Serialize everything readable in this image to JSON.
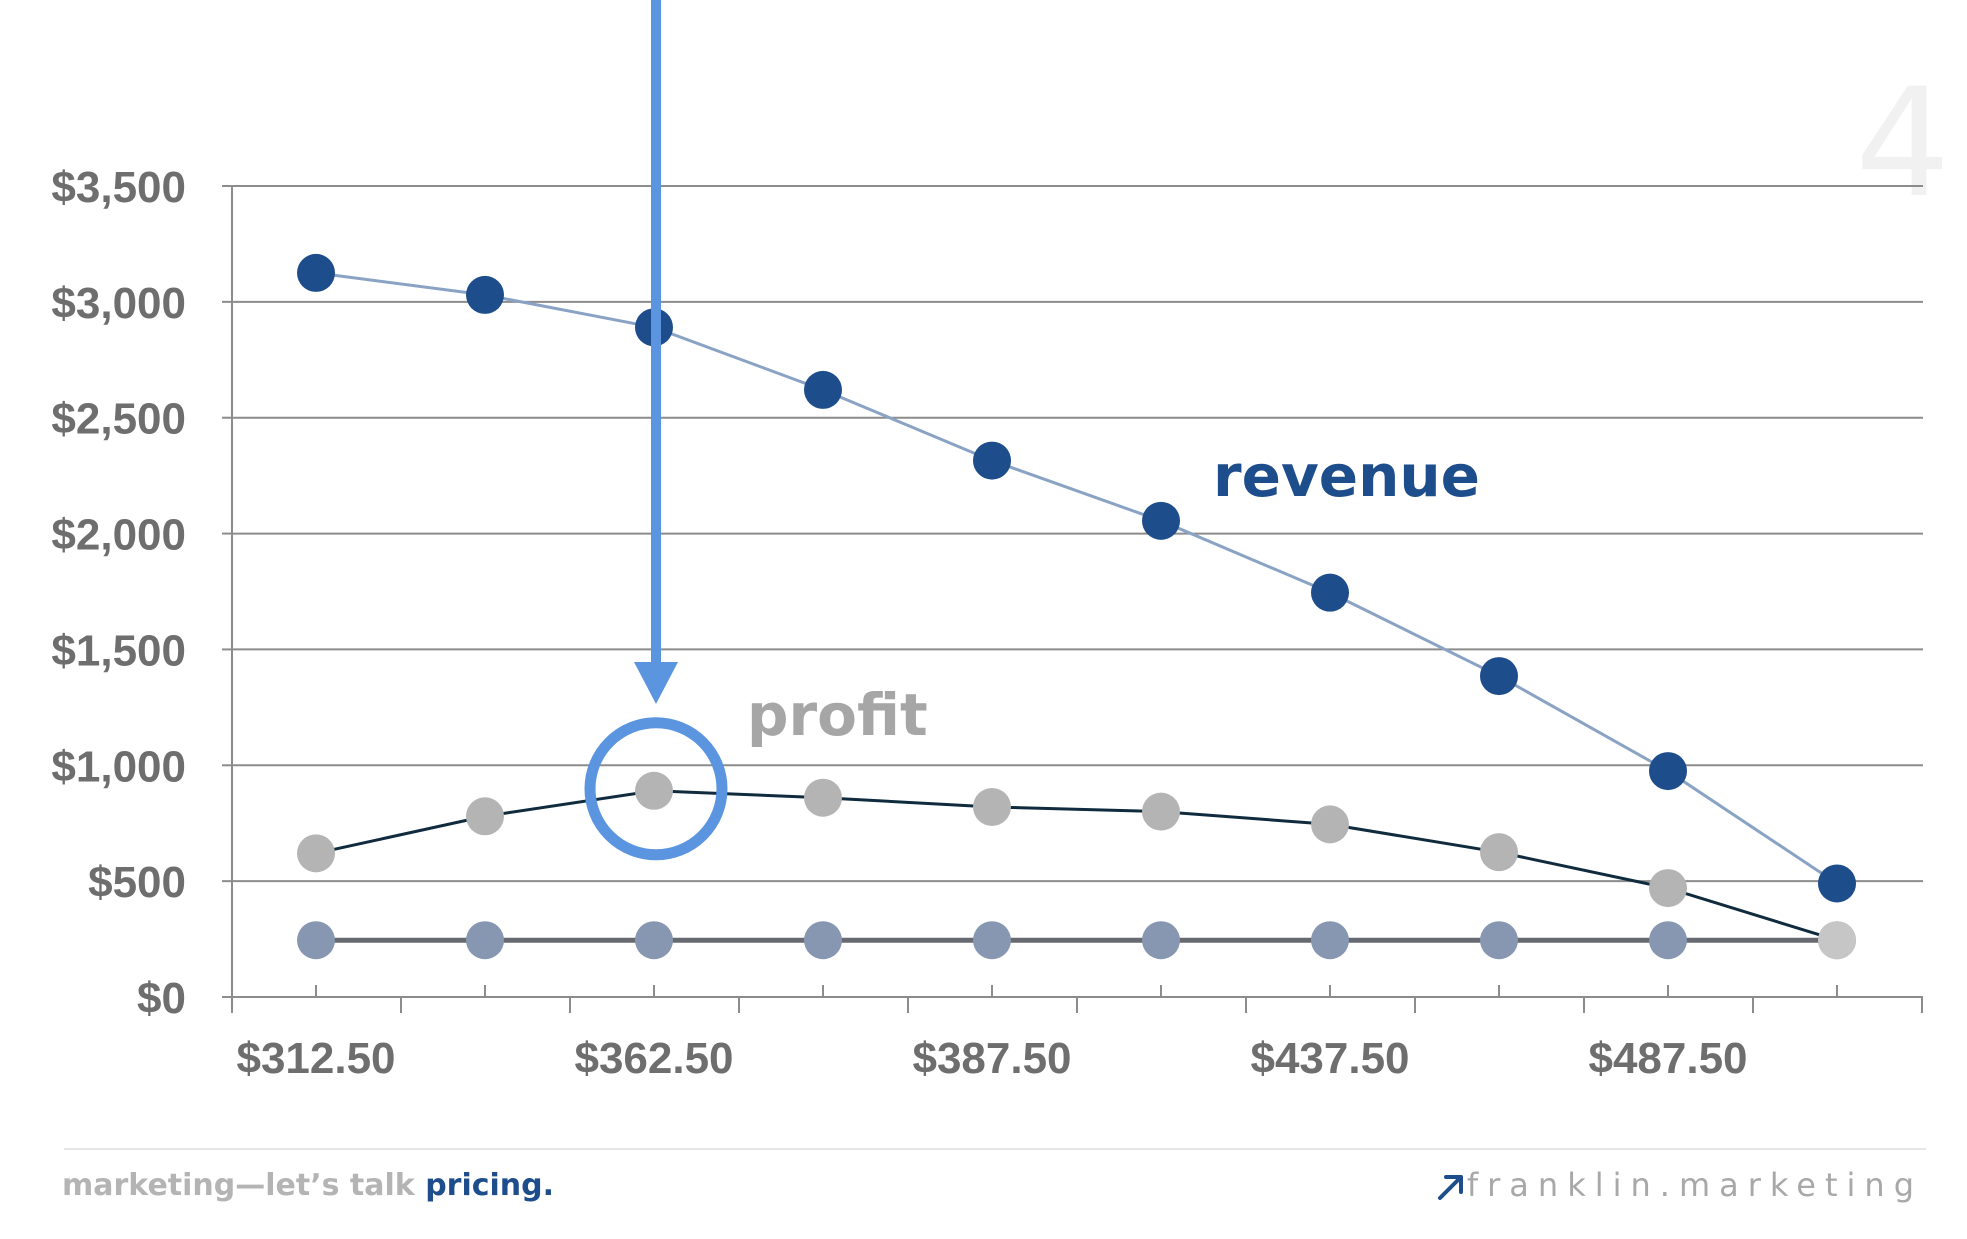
{
  "chart_data": {
    "type": "line",
    "xlabel": "",
    "ylabel": "",
    "x_tick_labels": [
      "$312.50",
      "$362.50",
      "$387.50",
      "$437.50",
      "$487.50"
    ],
    "y_tick_labels": [
      "$0",
      "$500",
      "$1,000",
      "$1,500",
      "$2,000",
      "$2,500",
      "$3,000",
      "$3,500"
    ],
    "ylim": [
      0,
      3500
    ],
    "grid": "horizontal",
    "series": [
      {
        "name": "revenue",
        "color": "#1e4d8c",
        "line_color": "#8aa3c4",
        "values": [
          3125,
          3030,
          2890,
          2620,
          2315,
          2055,
          1745,
          1385,
          975,
          490
        ]
      },
      {
        "name": "profit",
        "color": "#b4b4b4",
        "line_color": "#0f2b3d",
        "values": [
          620,
          780,
          890,
          860,
          820,
          800,
          745,
          625,
          470,
          245
        ]
      },
      {
        "color": "#8797b1",
        "line_color": "#666a70",
        "values": [
          245,
          245,
          245,
          245,
          245,
          245,
          245,
          245,
          245,
          245
        ]
      }
    ],
    "highlight": {
      "series": "profit",
      "index": 2,
      "color": "#5b95e0"
    }
  },
  "page_number": "4",
  "footer": {
    "tagline_prefix": "marketing—let’s talk ",
    "tagline_accent": "pricing",
    "tagline_suffix": ".",
    "site": "franklin.marketing",
    "arrow_icon": "arrow-up-right-icon"
  }
}
